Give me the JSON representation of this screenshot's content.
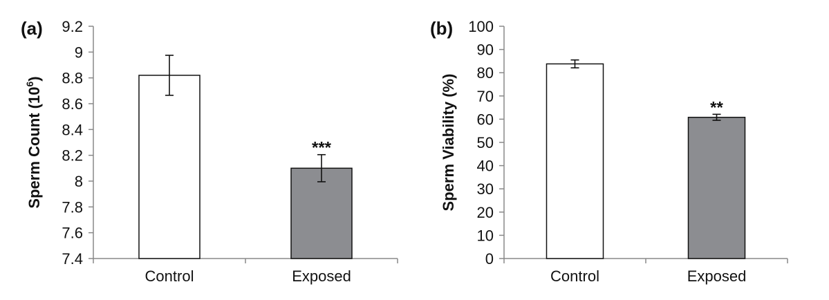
{
  "chart_data": [
    {
      "type": "bar",
      "panel_label": "(a)",
      "categories": [
        "Control",
        "Exposed"
      ],
      "values": [
        8.82,
        8.1
      ],
      "errors": [
        0.155,
        0.105
      ],
      "significance": [
        "",
        "***"
      ],
      "bar_colors": [
        "#ffffff",
        "#8c8d91"
      ],
      "ylabel": "Sperm Count (10",
      "ylabel_exponent": "6",
      "ylabel_suffix": ")",
      "ylim": [
        7.4,
        9.2
      ],
      "yticks": [
        7.4,
        7.6,
        7.8,
        8,
        8.2,
        8.4,
        8.6,
        8.8,
        9,
        9.2
      ],
      "ytick_labels": [
        "7.4",
        "7.6",
        "7.8",
        "8",
        "8.2",
        "8.4",
        "8.6",
        "8.8",
        "9",
        "9.2"
      ],
      "grid": false,
      "legend": "none"
    },
    {
      "type": "bar",
      "panel_label": "(b)",
      "categories": [
        "Control",
        "Exposed"
      ],
      "values": [
        83.8,
        60.8
      ],
      "errors": [
        1.7,
        1.3
      ],
      "significance": [
        "",
        "**"
      ],
      "bar_colors": [
        "#ffffff",
        "#8c8d91"
      ],
      "ylabel": "Sperm Viability (%)",
      "ylabel_exponent": "",
      "ylabel_suffix": "",
      "ylim": [
        0,
        100
      ],
      "yticks": [
        0,
        10,
        20,
        30,
        40,
        50,
        60,
        70,
        80,
        90,
        100
      ],
      "ytick_labels": [
        "0",
        "10",
        "20",
        "30",
        "40",
        "50",
        "60",
        "70",
        "80",
        "90",
        "100"
      ],
      "grid": false,
      "legend": "none"
    }
  ],
  "colors": {
    "axis": "#888888",
    "bar_stroke": "#111111",
    "text": "#111111"
  }
}
